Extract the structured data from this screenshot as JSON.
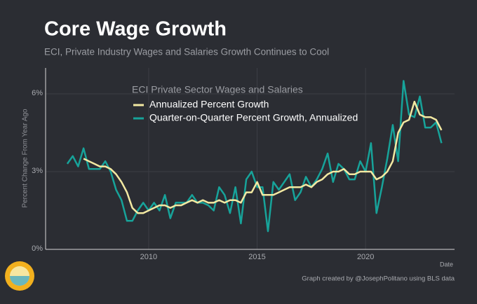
{
  "chart_data": {
    "type": "line",
    "title": "Core Wage Growth",
    "subtitle": "ECI, Private Industry Wages and Salaries Growth Continues to Cool",
    "y_label": "Percent Change From Year Ago",
    "x_label": "Date",
    "legend_title": "ECI Private Sector Wages and Salaries",
    "source": "Graph created by @JosephPolitano using BLS data",
    "x": [
      2006.25,
      2006.5,
      2006.75,
      2007,
      2007.25,
      2007.5,
      2007.75,
      2008,
      2008.25,
      2008.5,
      2008.75,
      2009,
      2009.25,
      2009.5,
      2009.75,
      2010,
      2010.25,
      2010.5,
      2010.75,
      2011,
      2011.25,
      2011.5,
      2011.75,
      2012,
      2012.25,
      2012.5,
      2012.75,
      2013,
      2013.25,
      2013.5,
      2013.75,
      2014,
      2014.25,
      2014.5,
      2014.75,
      2015,
      2015.25,
      2015.5,
      2015.75,
      2016,
      2016.25,
      2016.5,
      2016.75,
      2017,
      2017.25,
      2017.5,
      2017.75,
      2018,
      2018.25,
      2018.5,
      2018.75,
      2019,
      2019.25,
      2019.5,
      2019.75,
      2020,
      2020.25,
      2020.5,
      2020.75,
      2021,
      2021.25,
      2021.5,
      2021.75,
      2022,
      2022.25,
      2022.5,
      2022.75,
      2023,
      2023.25,
      2023.5
    ],
    "series": [
      {
        "name": "Annualized Percent Growth",
        "color": "#f3e9a2",
        "values": [
          null,
          null,
          null,
          3.5,
          3.4,
          3.3,
          3.2,
          3.2,
          3.1,
          2.9,
          2.6,
          2.2,
          1.6,
          1.4,
          1.4,
          1.5,
          1.6,
          1.7,
          1.7,
          1.6,
          1.7,
          1.7,
          1.8,
          1.9,
          1.8,
          1.9,
          1.8,
          1.8,
          1.9,
          1.8,
          1.9,
          1.9,
          1.8,
          2.2,
          2.2,
          2.6,
          2.1,
          2.1,
          2.1,
          2.2,
          2.3,
          2.4,
          2.4,
          2.4,
          2.5,
          2.4,
          2.6,
          2.7,
          2.9,
          3.0,
          3.0,
          3.1,
          2.9,
          2.9,
          3.0,
          3.0,
          3.0,
          2.7,
          2.8,
          3.0,
          3.4,
          4.5,
          4.9,
          5.0,
          5.7,
          5.2,
          5.1,
          5.1,
          5.0,
          4.6
        ]
      },
      {
        "name": "Quarter-on-Quarter Percent Growth, Annualized",
        "color": "#17a39a",
        "values": [
          3.3,
          3.6,
          3.2,
          3.9,
          3.1,
          3.1,
          3.1,
          3.4,
          3.0,
          2.3,
          1.9,
          1.1,
          1.1,
          1.5,
          1.8,
          1.5,
          1.8,
          1.5,
          2.1,
          1.2,
          1.8,
          1.8,
          1.8,
          2.1,
          1.8,
          1.8,
          1.7,
          1.5,
          2.4,
          2.1,
          1.4,
          2.4,
          1.0,
          2.7,
          3.0,
          2.4,
          2.4,
          0.7,
          2.6,
          2.3,
          2.6,
          2.9,
          1.9,
          2.2,
          2.8,
          2.4,
          2.7,
          3.1,
          3.7,
          2.6,
          3.3,
          3.1,
          2.7,
          2.7,
          3.4,
          3.0,
          4.1,
          1.4,
          2.4,
          3.5,
          4.8,
          3.4,
          6.5,
          5.2,
          5.1,
          5.9,
          4.7,
          4.7,
          4.9,
          4.1
        ]
      }
    ],
    "xlim": [
      2005.25,
      2024.1
    ],
    "ylim": [
      0,
      7
    ],
    "xticks": [
      2010,
      2015,
      2020
    ],
    "yticks": [
      {
        "value": 0,
        "label": "0%"
      },
      {
        "value": 3,
        "label": "3%"
      },
      {
        "value": 6,
        "label": "6%"
      }
    ],
    "grid": true
  }
}
